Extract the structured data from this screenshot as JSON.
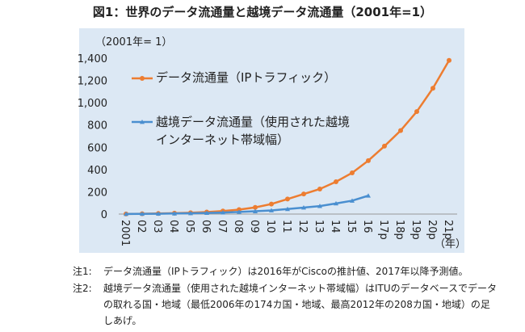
{
  "chart_data": {
    "type": "line",
    "title": "図1：世界のデータ流通量と越境データ流通量（2001年=1）",
    "y_label": "（2001年= 1）",
    "x_label": "（年）",
    "categories": [
      "2001",
      "02",
      "03",
      "04",
      "05",
      "06",
      "07",
      "08",
      "09",
      "10",
      "11",
      "12",
      "13",
      "14",
      "15",
      "16",
      "17p",
      "18p",
      "19p",
      "20p",
      "21p"
    ],
    "series": [
      {
        "name": "データ流通量（IPトラフィック）",
        "color": "#ed7d31",
        "marker": "circle",
        "values": [
          1,
          3,
          5,
          8,
          12,
          18,
          27,
          40,
          60,
          90,
          135,
          180,
          225,
          290,
          370,
          480,
          610,
          750,
          920,
          1130,
          1380
        ]
      },
      {
        "name": "越境データ流通量（使用された越境インターネット帯域幅）",
        "color": "#4a8fd0",
        "marker": "triangle",
        "values": [
          1,
          2,
          3,
          5,
          7,
          10,
          14,
          19,
          25,
          33,
          45,
          58,
          72,
          95,
          120,
          165,
          null,
          null,
          null,
          null,
          null
        ]
      }
    ],
    "ylim": [
      0,
      1400
    ],
    "yticks": [
      0,
      200,
      400,
      600,
      800,
      {
        "value": 1000,
        "label": "1,000"
      },
      {
        "value": 1200,
        "label": "1,200"
      },
      {
        "value": 1400,
        "label": "1,400"
      }
    ]
  },
  "notes": [
    {
      "label": "注1:",
      "text": "データ流通量（IPトラフィック）は2016年がCiscoの推計値、2017年以降予測値。"
    },
    {
      "label": "注2:",
      "text": "越境データ流通量（使用された越境インターネット帯域幅）はITUのデータベースでデータの取れる国・地域（最低2006年の174カ国・地域、最高2012年の208カ国・地域）の足しあげ。"
    }
  ]
}
